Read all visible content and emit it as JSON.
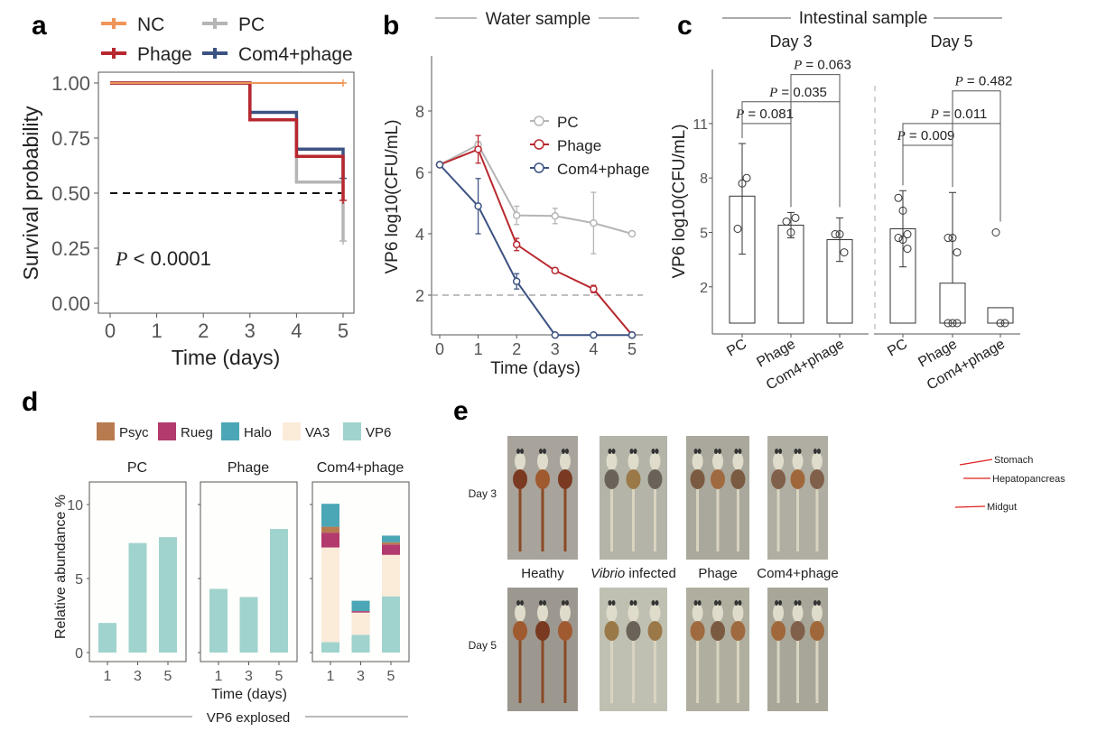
{
  "panels": {
    "a": "a",
    "b": "b",
    "c": "c",
    "d": "d",
    "e": "e"
  },
  "colors": {
    "NC": "#f0955a",
    "PC": "#b5b5b5",
    "Phage": "#b8282f",
    "Com4": "#3c5282",
    "Psyc": "#b87b50",
    "Rueg": "#b23a6c",
    "Halo": "#4ba6b5",
    "VA3": "#fbebd9",
    "VP6": "#a0d3cd"
  },
  "chart_data": [
    {
      "panel": "a",
      "type": "line",
      "step": true,
      "xlabel": "Time (days)",
      "ylabel": "Survival probability",
      "xlim": [
        0,
        5
      ],
      "ylim": [
        0,
        1
      ],
      "xticks": [
        "0",
        "1",
        "2",
        "3",
        "4",
        "5"
      ],
      "yticks": [
        "0.00",
        "0.25",
        "0.50",
        "0.75",
        "1.00"
      ],
      "median_line": 0.5,
      "annotation": {
        "p": "P",
        "rest": " < 0.0001"
      },
      "legend": "top",
      "series": [
        {
          "name": "NC",
          "color": "NC",
          "x": [
            0,
            5
          ],
          "y": [
            1,
            1
          ]
        },
        {
          "name": "PC",
          "color": "PC",
          "x": [
            0,
            3,
            4,
            5
          ],
          "y": [
            1,
            0.833,
            0.55,
            0.283
          ]
        },
        {
          "name": "Phage",
          "color": "Phage",
          "x": [
            0,
            3,
            4,
            5
          ],
          "y": [
            1,
            0.833,
            0.667,
            0.467
          ]
        },
        {
          "name": "Com4+phage",
          "color": "Com4",
          "x": [
            0,
            3,
            4,
            5
          ],
          "y": [
            1,
            0.867,
            0.7,
            0.567
          ]
        }
      ]
    },
    {
      "panel": "b",
      "type": "line",
      "title": "Water sample",
      "xlabel": "Time (days)",
      "ylabel": "VP6 log10(CFU/mL)",
      "xlim": [
        0,
        5
      ],
      "ylim": [
        0.7,
        9.8
      ],
      "xticks": [
        "0",
        "1",
        "2",
        "3",
        "4",
        "5"
      ],
      "yticks": [
        "2",
        "4",
        "6",
        "8"
      ],
      "detection_limit": 2,
      "legend": "top-right",
      "series": [
        {
          "name": "PC",
          "color": "PC",
          "x": [
            0,
            1,
            2,
            3,
            4,
            5
          ],
          "y": [
            6.25,
            6.9,
            4.6,
            4.58,
            4.35,
            4.0
          ],
          "err": [
            0,
            0.1,
            0.3,
            0.25,
            1.0,
            0.05
          ]
        },
        {
          "name": "Phage",
          "color": "Phage",
          "x": [
            0,
            1,
            2,
            3,
            4,
            5
          ],
          "y": [
            6.25,
            6.75,
            3.65,
            2.8,
            2.2,
            0.7
          ],
          "err": [
            0,
            0.45,
            0.2,
            0.08,
            0.12,
            0
          ]
        },
        {
          "name": "Com4+phage",
          "color": "Com4",
          "x": [
            0,
            1,
            2,
            3,
            4,
            5
          ],
          "y": [
            6.25,
            4.9,
            2.45,
            0.7,
            0.7,
            0.7
          ],
          "err": [
            0,
            0.9,
            0.25,
            0,
            0,
            0
          ]
        }
      ]
    },
    {
      "panel": "c",
      "type": "bar",
      "title": "Intestinal sample",
      "ylabel": "VP6 log10(CFU/mL)",
      "ylim": [
        0,
        14
      ],
      "yticks": [
        "2",
        "5",
        "8",
        "11"
      ],
      "groups": [
        {
          "name": "Day 3",
          "categories": [
            "PC",
            "Phage",
            "Com4+phage"
          ],
          "values": [
            7.0,
            5.4,
            4.6
          ],
          "err_low": [
            3.8,
            4.7,
            3.4
          ],
          "err_high": [
            9.9,
            6.1,
            5.8
          ],
          "points": [
            [
              5.2,
              7.7,
              8.0
            ],
            [
              5.6,
              5.0,
              5.8
            ],
            [
              4.9,
              4.9,
              3.9
            ]
          ],
          "comparisons": [
            {
              "a": 0,
              "b": 1,
              "label": "P",
              "value": " = 0.081",
              "y": 11.0
            },
            {
              "a": 0,
              "b": 2,
              "label": "P",
              "value": " = 0.035",
              "y": 12.2
            },
            {
              "a": 1,
              "b": 2,
              "label": "P",
              "value": " = 0.063",
              "y": 13.7
            }
          ]
        },
        {
          "name": "Day 5",
          "categories": [
            "PC",
            "Phage",
            "Com4+phage"
          ],
          "values": [
            5.2,
            2.2,
            0.85
          ],
          "err_low": [
            3.1,
            null,
            null
          ],
          "err_high": [
            7.3,
            7.2,
            null
          ],
          "points": [
            [
              6.9,
              6.2,
              4.9,
              4.7,
              4.6,
              4.1
            ],
            [
              4.7,
              4.7,
              3.9,
              0,
              0,
              0
            ],
            [
              5.0,
              0,
              0
            ]
          ],
          "comparisons": [
            {
              "a": 0,
              "b": 1,
              "label": "P",
              "value": " = 0.009",
              "y": 9.8
            },
            {
              "a": 0,
              "b": 2,
              "label": "P",
              "value": " = 0.011",
              "y": 11.0
            },
            {
              "a": 1,
              "b": 2,
              "label": "P",
              "value": " = 0.482",
              "y": 12.8
            }
          ]
        }
      ]
    },
    {
      "panel": "d",
      "type": "bar",
      "stacked": true,
      "xlabel": "Time (days)",
      "ylabel": "Relative abundance %",
      "footer": "VP6 explosed",
      "ylim": [
        0,
        11.5
      ],
      "yticks": [
        "0",
        "5",
        "10"
      ],
      "categories": [
        "1",
        "3",
        "5"
      ],
      "legend": "top",
      "taxa": [
        "Psyc",
        "Rueg",
        "Halo",
        "VA3",
        "VP6"
      ],
      "stack_order": [
        "VP6",
        "VA3",
        "Rueg",
        "Psyc",
        "Halo"
      ],
      "facets": [
        {
          "name": "PC",
          "values": {
            "VP6": [
              2.0,
              7.4,
              7.8
            ],
            "VA3": [
              0,
              0,
              0
            ],
            "Rueg": [
              0,
              0,
              0
            ],
            "Psyc": [
              0,
              0,
              0
            ],
            "Halo": [
              0,
              0,
              0
            ]
          }
        },
        {
          "name": "Phage",
          "values": {
            "VP6": [
              4.3,
              3.75,
              8.35
            ],
            "VA3": [
              0,
              0,
              0
            ],
            "Rueg": [
              0,
              0,
              0
            ],
            "Psyc": [
              0,
              0,
              0
            ],
            "Halo": [
              0,
              0,
              0
            ]
          }
        },
        {
          "name": "Com4+phage",
          "values": {
            "VP6": [
              0.7,
              1.2,
              3.8
            ],
            "VA3": [
              6.4,
              1.5,
              2.8
            ],
            "Rueg": [
              1.0,
              0.1,
              0.7
            ],
            "Psyc": [
              0.4,
              0,
              0.15
            ],
            "Halo": [
              1.55,
              0.7,
              0.45
            ]
          }
        }
      ]
    }
  ],
  "panel_e": {
    "rows": [
      "Day 3",
      "Day 5"
    ],
    "columns": [
      {
        "label": "Heathy",
        "italic": ""
      },
      {
        "label": " infected",
        "italic": "Vibrio"
      },
      {
        "label": "Phage",
        "italic": ""
      },
      {
        "label": "Com4+phage",
        "italic": ""
      }
    ],
    "annotations": [
      "Stomach",
      "Hepatopancreas",
      "Midgut"
    ]
  }
}
